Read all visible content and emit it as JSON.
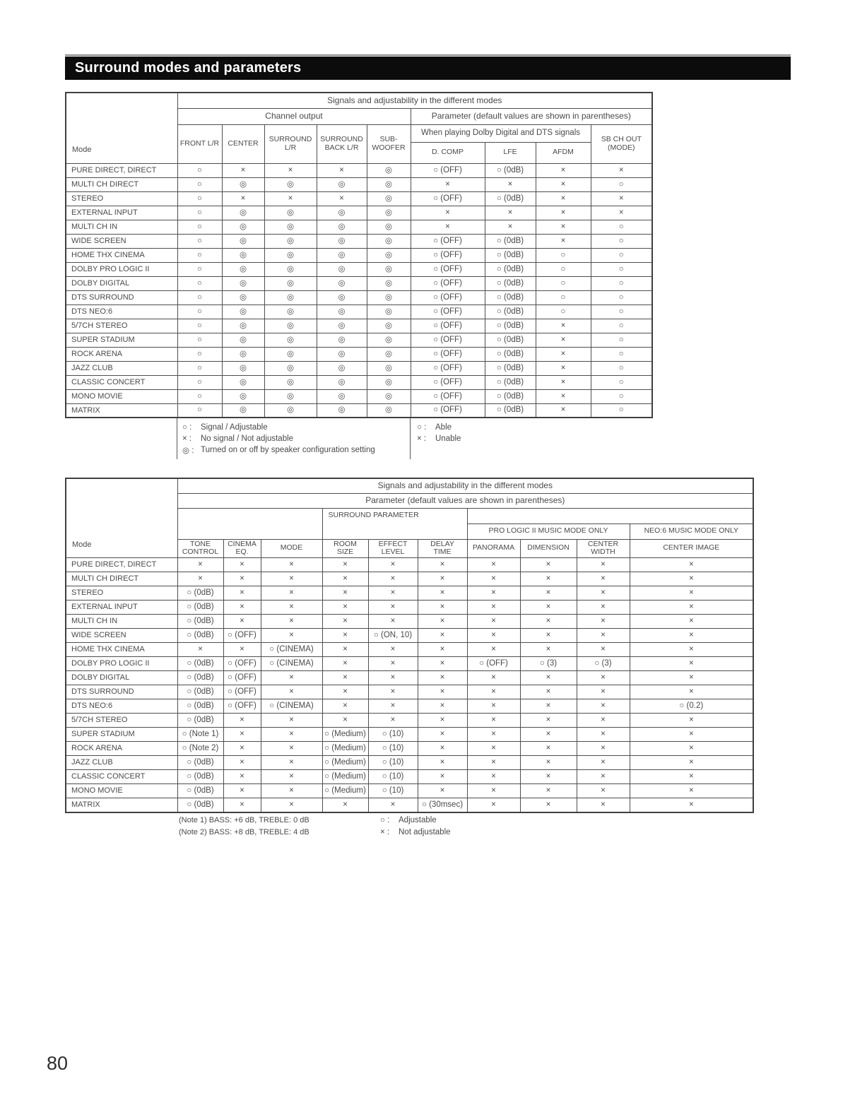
{
  "page": {
    "title": "Surround modes and parameters",
    "page_number": "80"
  },
  "colors": {
    "title_bar_bg": "#0c0c0c",
    "title_text": "#ffffff",
    "table_border": "#4e4e4e",
    "text": "#4a4a4a"
  },
  "table1": {
    "caption_top": "Signals and adjustability in the different modes",
    "group_channel": "Channel output",
    "group_parameter": "Parameter (default values are shown in parentheses)",
    "group_dolby": "When playing Dolby Digital and DTS signals",
    "mode_label": "Mode",
    "columns": [
      "FRONT L/R",
      "CENTER",
      "SURROUND\nL/R",
      "SURROUND\nBACK L/R",
      "SUB-\nWOOFER",
      "D. COMP",
      "LFE",
      "AFDM"
    ],
    "sb_ch_out": "SB CH OUT\n(MODE)",
    "rows": [
      {
        "mode": "PURE DIRECT, DIRECT",
        "cells": [
          "○",
          "×",
          "×",
          "×",
          "◎",
          "○ (OFF)",
          "○ (0dB)",
          "×",
          "×"
        ]
      },
      {
        "mode": "MULTI CH DIRECT",
        "cells": [
          "○",
          "◎",
          "◎",
          "◎",
          "◎",
          "×",
          "×",
          "×",
          "○"
        ]
      },
      {
        "mode": "STEREO",
        "cells": [
          "○",
          "×",
          "×",
          "×",
          "◎",
          "○ (OFF)",
          "○ (0dB)",
          "×",
          "×"
        ]
      },
      {
        "mode": "EXTERNAL INPUT",
        "cells": [
          "○",
          "◎",
          "◎",
          "◎",
          "◎",
          "×",
          "×",
          "×",
          "×"
        ]
      },
      {
        "mode": "MULTI CH IN",
        "cells": [
          "○",
          "◎",
          "◎",
          "◎",
          "◎",
          "×",
          "×",
          "×",
          "○"
        ]
      },
      {
        "mode": "WIDE SCREEN",
        "cells": [
          "○",
          "◎",
          "◎",
          "◎",
          "◎",
          "○ (OFF)",
          "○ (0dB)",
          "×",
          "○"
        ]
      },
      {
        "mode": "HOME THX CINEMA",
        "cells": [
          "○",
          "◎",
          "◎",
          "◎",
          "◎",
          "○ (OFF)",
          "○ (0dB)",
          "○",
          "○"
        ]
      },
      {
        "mode": "DOLBY PRO LOGIC II",
        "cells": [
          "○",
          "◎",
          "◎",
          "◎",
          "◎",
          "○ (OFF)",
          "○ (0dB)",
          "○",
          "○"
        ]
      },
      {
        "mode": "DOLBY DIGITAL",
        "cells": [
          "○",
          "◎",
          "◎",
          "◎",
          "◎",
          "○ (OFF)",
          "○ (0dB)",
          "○",
          "○"
        ]
      },
      {
        "mode": "DTS SURROUND",
        "cells": [
          "○",
          "◎",
          "◎",
          "◎",
          "◎",
          "○ (OFF)",
          "○ (0dB)",
          "○",
          "○"
        ]
      },
      {
        "mode": "DTS NEO:6",
        "cells": [
          "○",
          "◎",
          "◎",
          "◎",
          "◎",
          "○ (OFF)",
          "○ (0dB)",
          "○",
          "○"
        ]
      },
      {
        "mode": "5/7CH STEREO",
        "cells": [
          "○",
          "◎",
          "◎",
          "◎",
          "◎",
          "○ (OFF)",
          "○ (0dB)",
          "×",
          "○"
        ]
      },
      {
        "mode": "SUPER STADIUM",
        "cells": [
          "○",
          "◎",
          "◎",
          "◎",
          "◎",
          "○ (OFF)",
          "○ (0dB)",
          "×",
          "○"
        ]
      },
      {
        "mode": "ROCK ARENA",
        "cells": [
          "○",
          "◎",
          "◎",
          "◎",
          "◎",
          "○ (OFF)",
          "○ (0dB)",
          "×",
          "○"
        ]
      },
      {
        "mode": "JAZZ CLUB",
        "cells": [
          "○",
          "◎",
          "◎",
          "◎",
          "◎",
          "○ (OFF)",
          "○ (0dB)",
          "×",
          "○"
        ]
      },
      {
        "mode": "CLASSIC CONCERT",
        "cells": [
          "○",
          "◎",
          "◎",
          "◎",
          "◎",
          "○ (OFF)",
          "○ (0dB)",
          "×",
          "○"
        ]
      },
      {
        "mode": "MONO MOVIE",
        "cells": [
          "○",
          "◎",
          "◎",
          "◎",
          "◎",
          "○ (OFF)",
          "○ (0dB)",
          "×",
          "○"
        ]
      },
      {
        "mode": "MATRIX",
        "cells": [
          "○",
          "◎",
          "◎",
          "◎",
          "◎",
          "○ (OFF)",
          "○ (0dB)",
          "×",
          "○"
        ]
      }
    ],
    "legend_left": [
      {
        "sym": "○ :",
        "text": "Signal / Adjustable"
      },
      {
        "sym": "× :",
        "text": "No signal / Not adjustable"
      },
      {
        "sym": "◎ :",
        "text": "Turned on or off by speaker configuration setting"
      }
    ],
    "legend_right": [
      {
        "sym": "○ :",
        "text": "Able"
      },
      {
        "sym": "× :",
        "text": "Unable"
      }
    ]
  },
  "table2": {
    "caption_top": "Signals and adjustability in the different modes",
    "group_parameter": "Parameter (default values are shown in parentheses)",
    "group_surround": "SURROUND PARAMETER",
    "group_pl2": "PRO LOGIC II MUSIC MODE ONLY",
    "group_neo6": "NEO:6 MUSIC MODE ONLY",
    "mode_label": "Mode",
    "columns": [
      "TONE\nCONTROL",
      "CINEMA\nEQ.",
      "MODE",
      "ROOM\nSIZE",
      "EFFECT\nLEVEL",
      "DELAY\nTIME",
      "PANORAMA",
      "DIMENSION",
      "CENTER\nWIDTH",
      "CENTER IMAGE"
    ],
    "rows": [
      {
        "mode": "PURE DIRECT, DIRECT",
        "cells": [
          "×",
          "×",
          "×",
          "×",
          "×",
          "×",
          "×",
          "×",
          "×",
          "×"
        ]
      },
      {
        "mode": "MULTI CH DIRECT",
        "cells": [
          "×",
          "×",
          "×",
          "×",
          "×",
          "×",
          "×",
          "×",
          "×",
          "×"
        ]
      },
      {
        "mode": "STEREO",
        "cells": [
          "○ (0dB)",
          "×",
          "×",
          "×",
          "×",
          "×",
          "×",
          "×",
          "×",
          "×"
        ]
      },
      {
        "mode": "EXTERNAL INPUT",
        "cells": [
          "○ (0dB)",
          "×",
          "×",
          "×",
          "×",
          "×",
          "×",
          "×",
          "×",
          "×"
        ]
      },
      {
        "mode": "MULTI CH IN",
        "cells": [
          "○ (0dB)",
          "×",
          "×",
          "×",
          "×",
          "×",
          "×",
          "×",
          "×",
          "×"
        ]
      },
      {
        "mode": "WIDE SCREEN",
        "cells": [
          "○ (0dB)",
          "○ (OFF)",
          "×",
          "×",
          "○ (ON, 10)",
          "×",
          "×",
          "×",
          "×",
          "×"
        ]
      },
      {
        "mode": "HOME THX CINEMA",
        "cells": [
          "×",
          "×",
          "○ (CINEMA)",
          "×",
          "×",
          "×",
          "×",
          "×",
          "×",
          "×"
        ]
      },
      {
        "mode": "DOLBY PRO LOGIC II",
        "cells": [
          "○ (0dB)",
          "○ (OFF)",
          "○ (CINEMA)",
          "×",
          "×",
          "×",
          "○ (OFF)",
          "○ (3)",
          "○ (3)",
          "×"
        ]
      },
      {
        "mode": "DOLBY DIGITAL",
        "cells": [
          "○ (0dB)",
          "○ (OFF)",
          "×",
          "×",
          "×",
          "×",
          "×",
          "×",
          "×",
          "×"
        ]
      },
      {
        "mode": "DTS SURROUND",
        "cells": [
          "○ (0dB)",
          "○ (OFF)",
          "×",
          "×",
          "×",
          "×",
          "×",
          "×",
          "×",
          "×"
        ]
      },
      {
        "mode": "DTS NEO:6",
        "cells": [
          "○ (0dB)",
          "○ (OFF)",
          "○ (CINEMA)",
          "×",
          "×",
          "×",
          "×",
          "×",
          "×",
          "○ (0.2)"
        ]
      },
      {
        "mode": "5/7CH STEREO",
        "cells": [
          "○ (0dB)",
          "×",
          "×",
          "×",
          "×",
          "×",
          "×",
          "×",
          "×",
          "×"
        ]
      },
      {
        "mode": "SUPER STADIUM",
        "cells": [
          "○ (Note 1)",
          "×",
          "×",
          "○ (Medium)",
          "○ (10)",
          "×",
          "×",
          "×",
          "×",
          "×"
        ]
      },
      {
        "mode": "ROCK ARENA",
        "cells": [
          "○ (Note 2)",
          "×",
          "×",
          "○ (Medium)",
          "○ (10)",
          "×",
          "×",
          "×",
          "×",
          "×"
        ]
      },
      {
        "mode": "JAZZ CLUB",
        "cells": [
          "○ (0dB)",
          "×",
          "×",
          "○ (Medium)",
          "○ (10)",
          "×",
          "×",
          "×",
          "×",
          "×"
        ]
      },
      {
        "mode": "CLASSIC CONCERT",
        "cells": [
          "○ (0dB)",
          "×",
          "×",
          "○ (Medium)",
          "○ (10)",
          "×",
          "×",
          "×",
          "×",
          "×"
        ]
      },
      {
        "mode": "MONO MOVIE",
        "cells": [
          "○ (0dB)",
          "×",
          "×",
          "○ (Medium)",
          "○ (10)",
          "×",
          "×",
          "×",
          "×",
          "×"
        ]
      },
      {
        "mode": "MATRIX",
        "cells": [
          "○ (0dB)",
          "×",
          "×",
          "×",
          "×",
          "○ (30msec)",
          "×",
          "×",
          "×",
          "×"
        ]
      }
    ],
    "notes_left": [
      "(Note 1) BASS: +6 dB, TREBLE: 0 dB",
      "(Note 2) BASS: +8 dB, TREBLE: 4 dB"
    ],
    "legend_right": [
      {
        "sym": "○ :",
        "text": "Adjustable"
      },
      {
        "sym": "× :",
        "text": "Not adjustable"
      }
    ]
  }
}
